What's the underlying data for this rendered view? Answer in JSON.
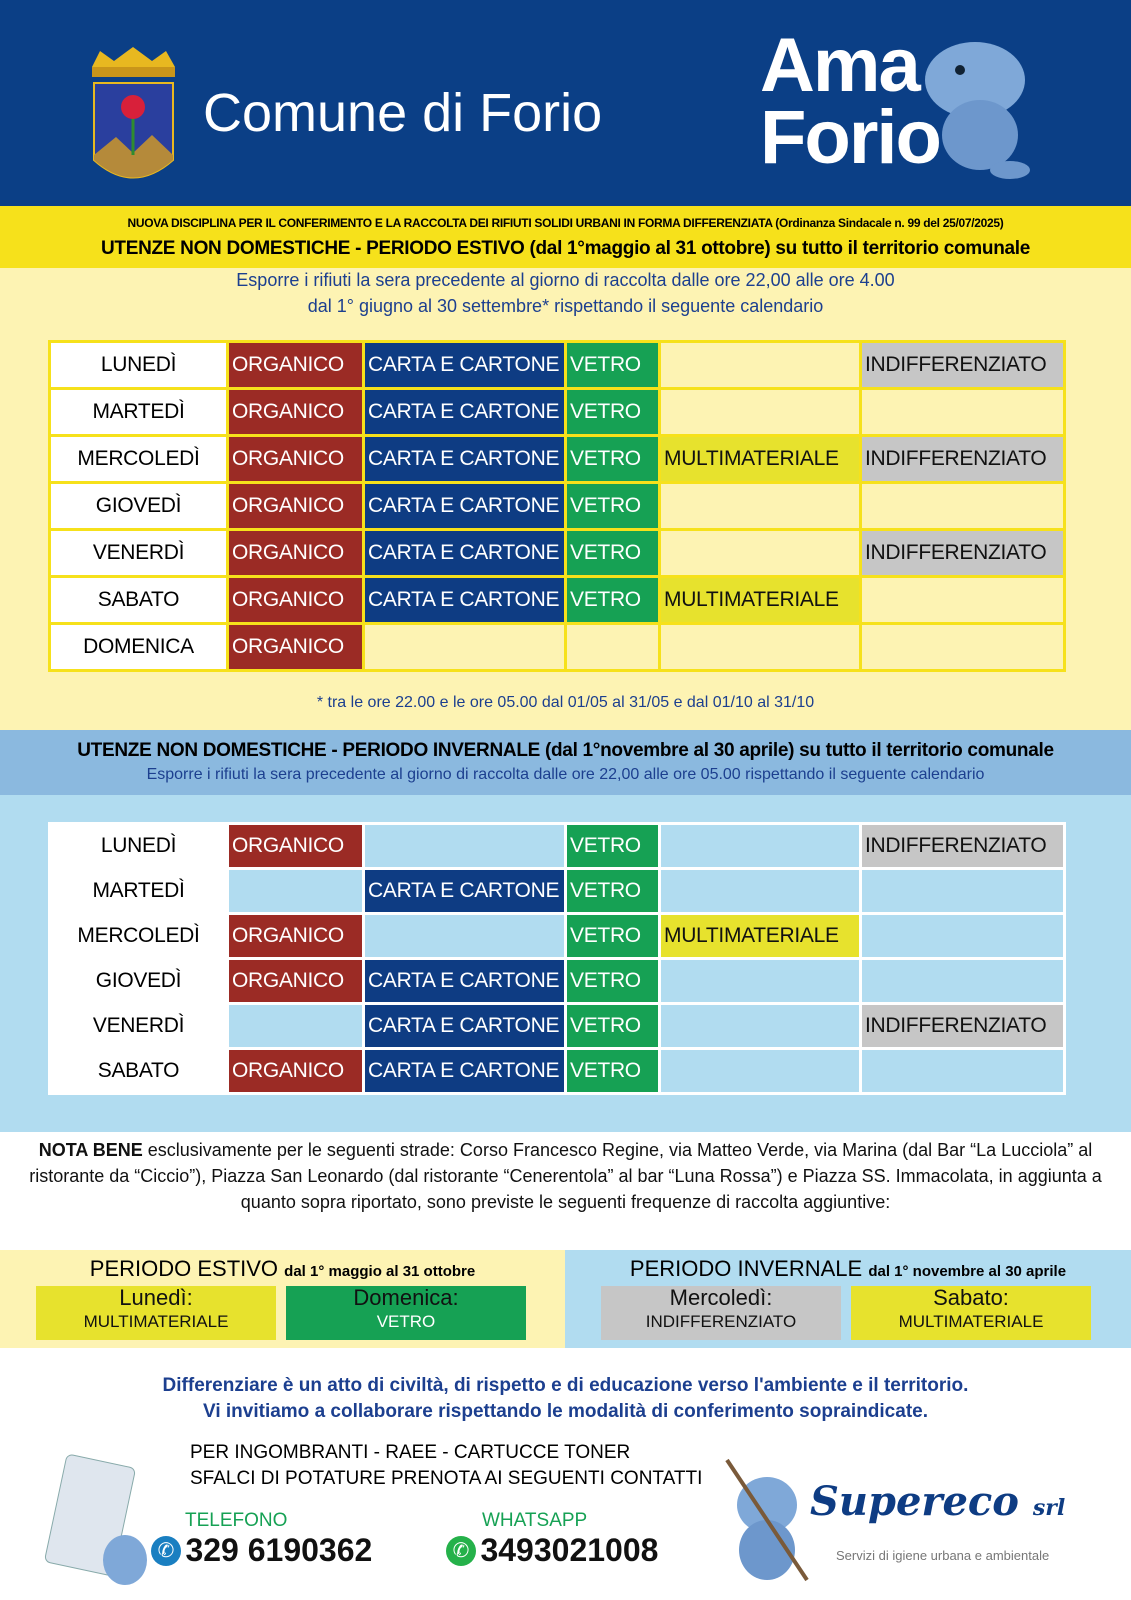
{
  "header": {
    "comune": "Comune di Forio",
    "logo_line1": "Ama",
    "logo_line2": "Forio"
  },
  "ordinance": "NUOVA DISCIPLINA PER IL CONFERIMENTO E LA RACCOLTA  DEI RIFIUTI SOLIDI URBANI IN FORMA DIFFERENZIATA (Ordinanza Sindacale  n. 99 del 25/07/2025)",
  "categories": {
    "organico": "ORGANICO",
    "carta": "CARTA E CARTONE",
    "vetro": "VETRO",
    "multi": "MULTIMATERIALE",
    "indiff": "INDIFFERENZIATO"
  },
  "colors": {
    "organico": "#9b2b25",
    "carta": "#0e3c83",
    "vetro": "#16a154",
    "multi": "#e7e22d",
    "indiff": "#c6c6c6",
    "header": "#0b3f86"
  },
  "summer": {
    "title": "UTENZE NON DOMESTICHE - PERIODO ESTIVO (dal 1°maggio al 31 ottobre) su tutto il territorio comunale",
    "line1": "Esporre i rifiuti la sera precedente al giorno di raccolta dalle ore 22,00 alle ore 4.00",
    "line2": "dal 1° giugno al 30 settembre* rispettando il seguente calendario",
    "footnote": "* tra le ore 22.00 e le ore 05.00 dal 01/05 al 31/05 e dal 01/10 al 31/10",
    "rows": [
      {
        "day": "LUNEDÌ",
        "cells": [
          "organico",
          "carta",
          "vetro",
          null,
          "indiff"
        ]
      },
      {
        "day": "MARTEDÌ",
        "cells": [
          "organico",
          "carta",
          "vetro",
          null,
          null
        ]
      },
      {
        "day": "MERCOLEDÌ",
        "cells": [
          "organico",
          "carta",
          "vetro",
          "multi",
          "indiff"
        ]
      },
      {
        "day": "GIOVEDÌ",
        "cells": [
          "organico",
          "carta",
          "vetro",
          null,
          null
        ]
      },
      {
        "day": "VENERDÌ",
        "cells": [
          "organico",
          "carta",
          "vetro",
          null,
          "indiff"
        ]
      },
      {
        "day": "SABATO",
        "cells": [
          "organico",
          "carta",
          "vetro",
          "multi",
          null
        ]
      },
      {
        "day": "DOMENICA",
        "cells": [
          "organico",
          null,
          null,
          null,
          null
        ]
      }
    ]
  },
  "winter": {
    "title": "UTENZE NON DOMESTICHE - PERIODO INVERNALE (dal 1°novembre al 30 aprile) su tutto il territorio comunale",
    "line1": "Esporre i rifiuti la sera precedente al giorno di raccolta dalle ore 22,00 alle ore 05.00 rispettando il seguente calendario",
    "rows": [
      {
        "day": "LUNEDÌ",
        "cells": [
          "organico",
          null,
          "vetro",
          null,
          "indiff"
        ]
      },
      {
        "day": "MARTEDÌ",
        "cells": [
          null,
          "carta",
          "vetro",
          null,
          null
        ]
      },
      {
        "day": "MERCOLEDÌ",
        "cells": [
          "organico",
          null,
          "vetro",
          "multi",
          null
        ]
      },
      {
        "day": "GIOVEDÌ",
        "cells": [
          "organico",
          "carta",
          "vetro",
          null,
          null
        ]
      },
      {
        "day": "VENERDÌ",
        "cells": [
          null,
          "carta",
          "vetro",
          null,
          "indiff"
        ]
      },
      {
        "day": "SABATO",
        "cells": [
          "organico",
          "carta",
          "vetro",
          null,
          null
        ]
      }
    ]
  },
  "notes": {
    "bold": "NOTA BENE",
    "text": " esclusivamente per le seguenti strade: Corso Francesco Regine, via Matteo Verde, via Marina (dal Bar “La Lucciola” al ristorante da “Ciccio”), Piazza San Leonardo (dal ristorante “Cenerentola” al bar “Luna Rossa”) e Piazza SS. Immacolata, in aggiunta a quanto sopra riportato, sono previste le seguenti frequenze di raccolta aggiuntive:"
  },
  "extra": {
    "estivo": {
      "title": "PERIODO ESTIVO",
      "range": "dal 1° maggio al 31 ottobre",
      "boxes": [
        {
          "day": "Lunedì:",
          "mat": "MULTIMATERIALE",
          "color": "multi"
        },
        {
          "day": "Domenica:",
          "mat": "VETRO",
          "color": "vetro"
        }
      ]
    },
    "invernale": {
      "title": "PERIODO INVERNALE",
      "range": "dal 1° novembre al 30 aprile",
      "boxes": [
        {
          "day": "Mercoledì:",
          "mat": "INDIFFERENZIATO",
          "color": "indiff"
        },
        {
          "day": "Sabato:",
          "mat": "MULTIMATERIALE",
          "color": "multi"
        }
      ]
    }
  },
  "slogan": {
    "line1": "Differenziare è un atto di civiltà, di rispetto e di educazione verso l'ambiente e il territorio.",
    "line2": "Vi invitiamo a collaborare rispettando le modalità di conferimento sopraindicate."
  },
  "contacts": {
    "line1": "PER INGOMBRANTI - RAEE - CARTUCCE TONER",
    "line2": "SFALCI DI POTATURE PRENOTA AI SEGUENTI CONTATTI",
    "phone_label": "TELEFONO",
    "phone": "329 6190362",
    "whatsapp_label": "WHATSAPP",
    "whatsapp": "3493021008"
  },
  "company": {
    "name": "Supereco",
    "suffix": "srl",
    "tagline": "Servizi di igiene urbana e ambientale"
  }
}
